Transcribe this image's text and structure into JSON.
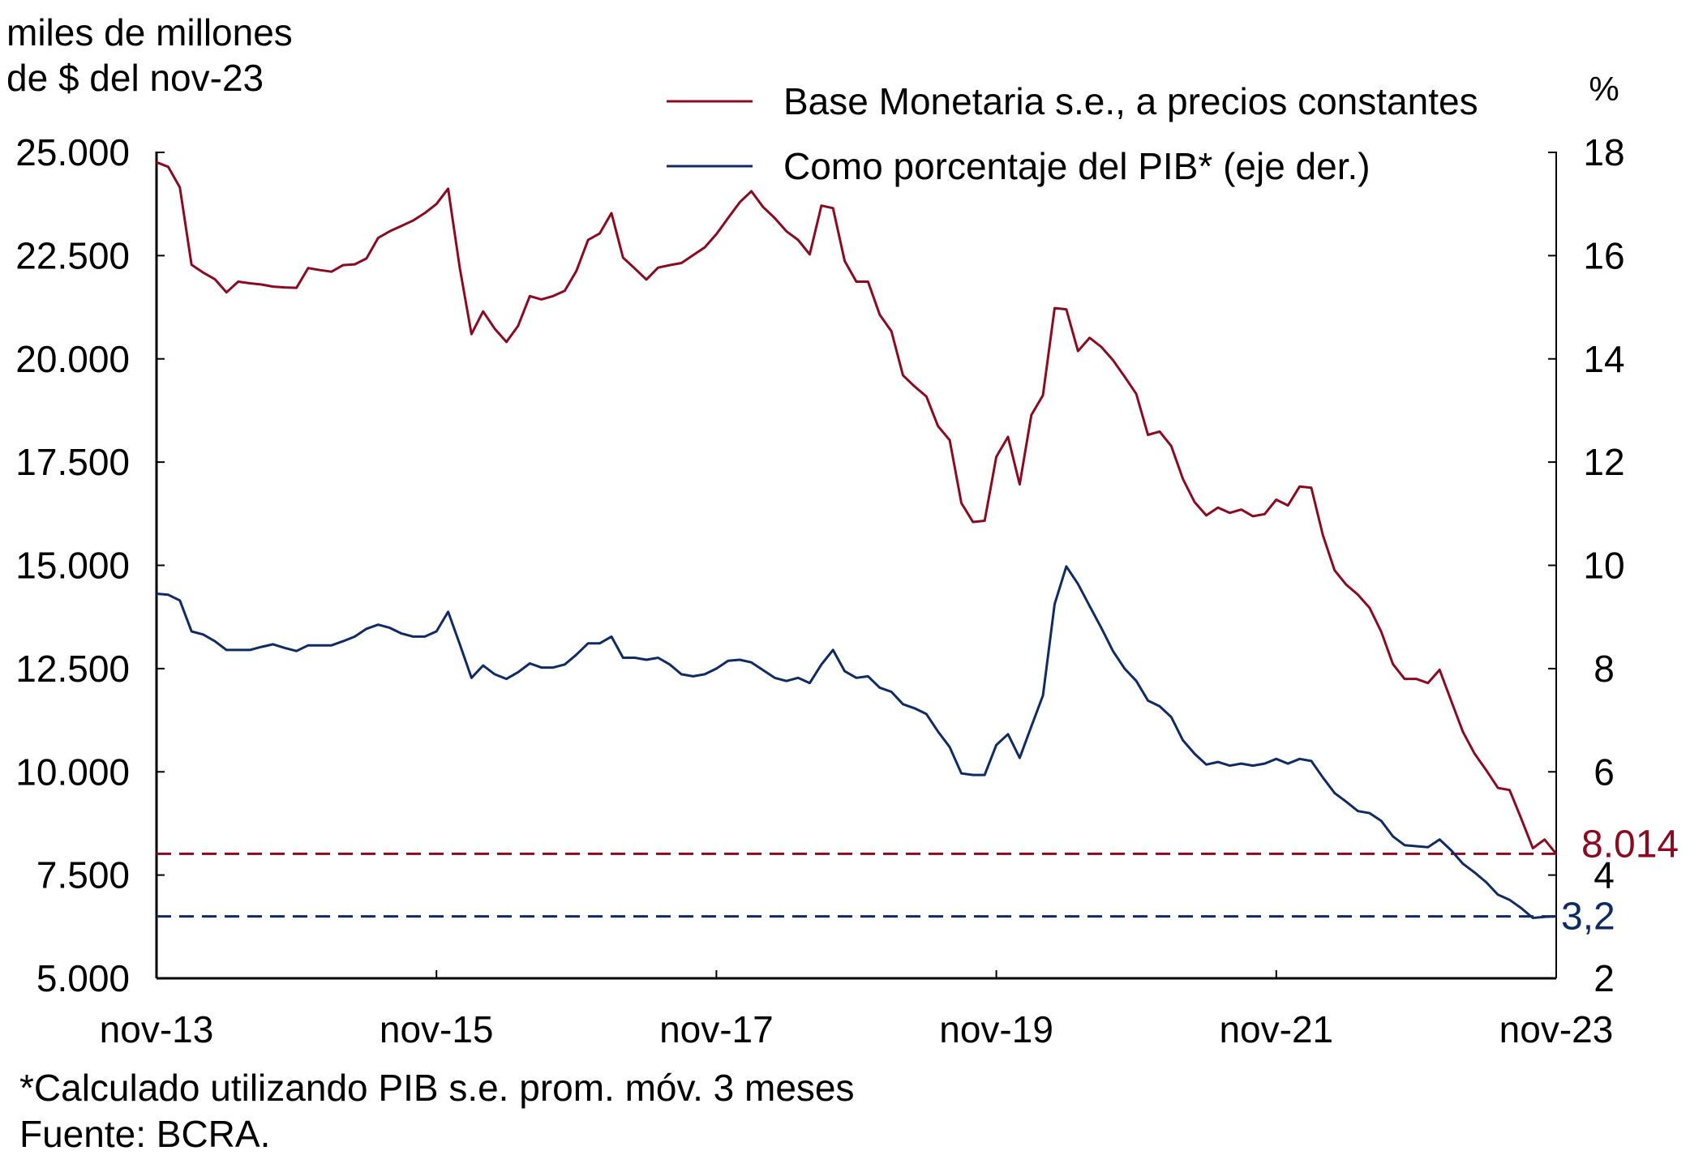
{
  "chart_data": {
    "type": "line",
    "title": "",
    "left_axis_label_line1": "miles de millones",
    "left_axis_label_line2": "de $ del nov-23",
    "right_axis_label": "%",
    "xlabel": "",
    "x_start": "nov-13",
    "x_end": "nov-23",
    "x_ticks": [
      "nov-13",
      "nov-15",
      "nov-17",
      "nov-19",
      "nov-21",
      "nov-23"
    ],
    "y_left": {
      "range": [
        5000,
        25000
      ],
      "ticks": [
        5000,
        7500,
        10000,
        12500,
        15000,
        17500,
        20000,
        22500,
        25000
      ],
      "tick_labels": [
        "5.000",
        "7.500",
        "10.000",
        "12.500",
        "15.000",
        "17.500",
        "20.000",
        "22.500",
        "25.000"
      ]
    },
    "y_right": {
      "range": [
        2,
        18
      ],
      "ticks": [
        2,
        4,
        6,
        8,
        10,
        12,
        14,
        16,
        18
      ],
      "tick_labels": [
        "2",
        "4",
        "6",
        "8",
        "10",
        "12",
        "14",
        "16",
        "18"
      ]
    },
    "grid": false,
    "legend_position": "top-right",
    "series": [
      {
        "name": "Base Monetaria s.e., a precios constantes",
        "axis": "left",
        "color": "#8B0A1F",
        "frequency": "monthly",
        "values": [
          24760,
          24650,
          24150,
          22280,
          22090,
          21930,
          21610,
          21870,
          21830,
          21800,
          21750,
          21730,
          21720,
          22200,
          22150,
          22110,
          22270,
          22290,
          22430,
          22930,
          23090,
          23220,
          23350,
          23530,
          23750,
          24120,
          22200,
          20600,
          21150,
          20730,
          20410,
          20800,
          21520,
          21440,
          21520,
          21650,
          22130,
          22880,
          23040,
          23530,
          22450,
          22190,
          21920,
          22210,
          22270,
          22320,
          22510,
          22700,
          23020,
          23410,
          23790,
          24060,
          23680,
          23410,
          23090,
          22880,
          22530,
          23710,
          23650,
          22370,
          21870,
          21870,
          21070,
          20670,
          19600,
          19330,
          19090,
          18370,
          18030,
          16510,
          16050,
          16080,
          17630,
          18110,
          16960,
          18640,
          19120,
          21230,
          21200,
          20190,
          20510,
          20290,
          19970,
          19570,
          19150,
          18160,
          18240,
          17890,
          17090,
          16530,
          16210,
          16400,
          16270,
          16350,
          16190,
          16240,
          16590,
          16450,
          16910,
          16880,
          15730,
          14880,
          14530,
          14290,
          13970,
          13390,
          12610,
          12250,
          12250,
          12150,
          12470,
          11720,
          10970,
          10440,
          10040,
          9610,
          9560,
          8870,
          8150,
          8360,
          8014
        ]
      },
      {
        "name": "Como porcentaje del PIB* (eje der.)",
        "axis": "right",
        "color": "#0F2B63",
        "frequency": "monthly",
        "values": [
          9.45,
          9.43,
          9.32,
          8.72,
          8.66,
          8.53,
          8.36,
          8.36,
          8.36,
          8.42,
          8.47,
          8.4,
          8.34,
          8.45,
          8.45,
          8.45,
          8.53,
          8.62,
          8.77,
          8.85,
          8.79,
          8.68,
          8.62,
          8.62,
          8.72,
          9.1,
          8.47,
          7.82,
          8.06,
          7.89,
          7.8,
          7.93,
          8.1,
          8.02,
          8.02,
          8.08,
          8.27,
          8.49,
          8.49,
          8.62,
          8.21,
          8.21,
          8.17,
          8.21,
          8.08,
          7.89,
          7.85,
          7.89,
          8.0,
          8.15,
          8.17,
          8.12,
          7.97,
          7.82,
          7.76,
          7.82,
          7.72,
          8.08,
          8.36,
          7.95,
          7.82,
          7.85,
          7.63,
          7.55,
          7.31,
          7.23,
          7.12,
          6.78,
          6.48,
          5.97,
          5.94,
          5.94,
          6.52,
          6.73,
          6.27,
          6.88,
          7.48,
          9.25,
          9.98,
          9.64,
          9.21,
          8.79,
          8.34,
          8.0,
          7.76,
          7.38,
          7.27,
          7.06,
          6.61,
          6.35,
          6.14,
          6.19,
          6.12,
          6.16,
          6.12,
          6.16,
          6.25,
          6.16,
          6.25,
          6.21,
          5.89,
          5.59,
          5.42,
          5.24,
          5.2,
          5.05,
          4.75,
          4.58,
          4.56,
          4.54,
          4.69,
          4.48,
          4.22,
          4.05,
          3.86,
          3.62,
          3.52,
          3.36,
          3.17,
          3.19,
          3.2
        ]
      }
    ],
    "reference_lines": [
      {
        "axis": "left",
        "value": 8014,
        "label": "8.014",
        "color": "#8B0A1F",
        "style": "dashed"
      },
      {
        "axis": "right",
        "value": 3.2,
        "label": "3,2",
        "color": "#0F2B63",
        "style": "dashed"
      }
    ],
    "footnote": "*Calculado utilizando PIB s.e. prom. móv. 3 meses",
    "source": "Fuente: BCRA."
  }
}
